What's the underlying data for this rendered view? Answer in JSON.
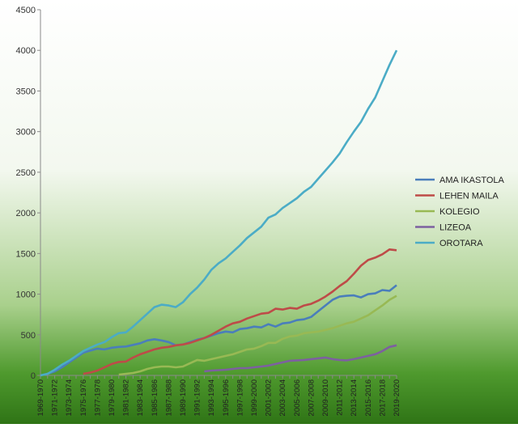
{
  "chart_data": {
    "type": "line",
    "categories": [
      "1969-1970",
      "1970-1971",
      "1971-1972",
      "1972-1973",
      "1973-1974",
      "1974-1975",
      "1975-1976",
      "1976-1977",
      "1977-1978",
      "1978-1979",
      "1979-1980",
      "1980-1981",
      "1981-1982",
      "1982-1983",
      "1983-1984",
      "1984-1985",
      "1985-1986",
      "1986-1987",
      "1987-1988",
      "1988-1989",
      "1989-1990",
      "1990-1991",
      "1991-1992",
      "1992-1993",
      "1993-1994",
      "1994-1995",
      "1995-1996",
      "1996-1997",
      "1997-1998",
      "1998-1999",
      "1999-2000",
      "2000-2001",
      "2001-2002",
      "2002-2003",
      "2003-2004",
      "2004-2005",
      "2005-2006",
      "2006-2007",
      "2007-2008",
      "2008-2009",
      "2009-2010",
      "2010-2011",
      "2011-2012",
      "2012-2013",
      "2013-2014",
      "2014-2015",
      "2015-2016",
      "2016-2017",
      "2017-2018",
      "2018-2019",
      "2019-2020"
    ],
    "tick_labels": [
      "1969-1970",
      "1971-1972",
      "1973-1974",
      "1975-1976",
      "1977-1978",
      "1979-1980",
      "1981-1982",
      "1983-1984",
      "1985-1986",
      "1987-1988",
      "1989-1990",
      "1991-1992",
      "1993-1994",
      "1995-1996",
      "1997-1998",
      "1999-2000",
      "2001-2002",
      "2003-2004",
      "2005-2006",
      "2007-2008",
      "2009-2010",
      "2011-2012",
      "2013-2014",
      "2015-2016",
      "2017-2018",
      "2019-2020"
    ],
    "series": [
      {
        "name": "AMA IKASTOLA",
        "color": "#4a7ebb",
        "values": [
          0,
          20,
          50,
          100,
          160,
          220,
          280,
          305,
          330,
          320,
          340,
          350,
          355,
          375,
          395,
          430,
          445,
          430,
          410,
          370,
          380,
          410,
          440,
          460,
          490,
          520,
          540,
          530,
          570,
          580,
          600,
          590,
          630,
          600,
          640,
          650,
          680,
          690,
          720,
          790,
          860,
          930,
          970,
          980,
          985,
          960,
          1000,
          1010,
          1050,
          1040,
          1110
        ]
      },
      {
        "name": "LEHEN MAILA",
        "color": "#be4b48",
        "values": [
          null,
          null,
          null,
          null,
          null,
          null,
          20,
          35,
          60,
          100,
          140,
          165,
          170,
          220,
          260,
          290,
          320,
          340,
          350,
          370,
          380,
          400,
          430,
          460,
          500,
          550,
          600,
          640,
          660,
          700,
          730,
          760,
          770,
          820,
          810,
          830,
          820,
          860,
          880,
          920,
          970,
          1030,
          1100,
          1160,
          1250,
          1350,
          1420,
          1450,
          1490,
          1550,
          1540
        ]
      },
      {
        "name": "KOLEGIO",
        "color": "#98b954",
        "values": [
          null,
          null,
          null,
          null,
          null,
          null,
          null,
          null,
          null,
          null,
          null,
          10,
          20,
          30,
          50,
          80,
          100,
          110,
          110,
          100,
          110,
          150,
          190,
          180,
          200,
          220,
          240,
          260,
          290,
          320,
          330,
          360,
          400,
          400,
          450,
          480,
          490,
          520,
          530,
          540,
          560,
          580,
          610,
          640,
          660,
          700,
          740,
          800,
          860,
          930,
          980
        ]
      },
      {
        "name": "LIZEOA",
        "color": "#7d60a0",
        "values": [
          null,
          null,
          null,
          null,
          null,
          null,
          null,
          null,
          null,
          null,
          null,
          null,
          null,
          null,
          null,
          null,
          null,
          null,
          null,
          null,
          null,
          null,
          null,
          50,
          60,
          65,
          70,
          80,
          90,
          90,
          100,
          110,
          120,
          140,
          160,
          180,
          185,
          190,
          200,
          210,
          220,
          200,
          190,
          185,
          200,
          220,
          240,
          260,
          300,
          350,
          370
        ]
      },
      {
        "name": "OROTARA",
        "color": "#4bacc6",
        "values": [
          0,
          20,
          70,
          130,
          180,
          240,
          300,
          340,
          380,
          410,
          470,
          520,
          530,
          600,
          680,
          760,
          840,
          870,
          860,
          840,
          900,
          1000,
          1080,
          1180,
          1300,
          1380,
          1440,
          1520,
          1600,
          1690,
          1760,
          1830,
          1940,
          1980,
          2060,
          2120,
          2180,
          2260,
          2320,
          2420,
          2520,
          2620,
          2730,
          2870,
          3000,
          3120,
          3280,
          3420,
          3620,
          3820,
          4000
        ]
      }
    ],
    "ylim": [
      0,
      4500
    ],
    "yticks": [
      0,
      500,
      1000,
      1500,
      2000,
      2500,
      3000,
      3500,
      4000,
      4500
    ],
    "grid": false,
    "legend": "right",
    "title": "",
    "xlabel": "",
    "ylabel": ""
  }
}
